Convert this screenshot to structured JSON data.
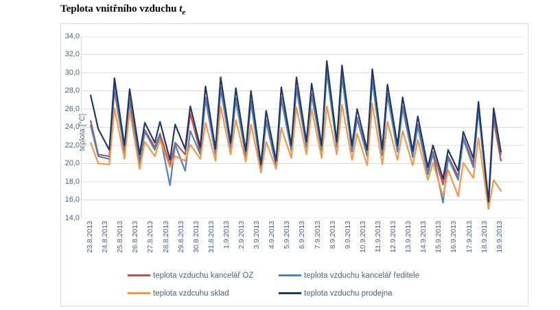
{
  "title": {
    "prefix": "Teplota vnitřního vzduchu ",
    "var": "t",
    "sub": "e"
  },
  "colors": {
    "background": "#ffffff",
    "frame_border": "#d9d9d9",
    "gridline": "#d9d9d9",
    "axis_text": "#4a6285",
    "series_red": "#c0504d",
    "series_blue": "#4f81bd",
    "series_orange": "#f79646",
    "series_navy": "#1f3864"
  },
  "chart_data": {
    "type": "line",
    "title": "Teplota vnitřního vzduchu te",
    "xlabel": "",
    "ylabel": "teplota [°C]",
    "ylim": [
      14,
      34
    ],
    "ytick_step": 2,
    "ytick_labels": [
      "34,0",
      "32,0",
      "30,0",
      "28,0",
      "26,0",
      "24,0",
      "22,0",
      "20,0",
      "18,0",
      "16,0",
      "14,0"
    ],
    "grid": true,
    "legend_position": "bottom",
    "x_dates": [
      "23.8.2013",
      "24.8.2013",
      "25.8.2013",
      "26.8.2013",
      "27.8.2013",
      "28.8.2013",
      "29.8.2013",
      "30.8.2013",
      "31.8.2013",
      "1.9.2013",
      "2.9.2013",
      "3.9.2013",
      "4.9.2013",
      "5.9.2013",
      "6.9.2013",
      "7.9.2013",
      "8.9.2013",
      "9.9.2013",
      "10.9.2013",
      "11.9.2013",
      "12.9.2013",
      "13.9.2013",
      "14.9.2013",
      "15.9.2013",
      "16.9.2013",
      "17.9.2013",
      "18.9.2013",
      "19.9.2013"
    ],
    "sampling_note": "hodnoty odečtené z grafu: denní minimum a maximum teploty [°C] pro každý den",
    "series": [
      {
        "name": "teplota vzduchu kancelář OZ",
        "color": "#c0504d",
        "start": 24.7,
        "end": 20.3,
        "daily_min": [
          21.0,
          20.8,
          21.4,
          20.3,
          21.8,
          19.8,
          21.0,
          21.2,
          21.2,
          21.9,
          21.0,
          19.5,
          19.9,
          21.6,
          22.0,
          21.6,
          22.0,
          21.5,
          21.0,
          21.1,
          21.5,
          20.9,
          19.0,
          17.7,
          18.6,
          20.0,
          15.5,
          20.1
        ],
        "daily_max": [
          24.7,
          28.0,
          27.2,
          23.7,
          23.3,
          22.3,
          25.5,
          27.3,
          28.4,
          27.2,
          26.9,
          24.8,
          27.3,
          28.4,
          27.7,
          30.2,
          29.7,
          25.1,
          29.3,
          27.7,
          26.3,
          24.3,
          21.3,
          20.8,
          22.9,
          26.0,
          24.8,
          20.5
        ]
      },
      {
        "name": "teplota vzduchu kancelář ředitele",
        "color": "#4f81bd",
        "start": 24.2,
        "end": 21.0,
        "daily_min": [
          20.8,
          20.5,
          21.1,
          20.0,
          21.5,
          17.6,
          19.2,
          21.0,
          21.0,
          21.7,
          20.8,
          19.3,
          19.7,
          21.4,
          21.8,
          21.4,
          21.8,
          21.3,
          20.8,
          20.9,
          21.3,
          20.7,
          18.8,
          15.7,
          18.2,
          19.6,
          15.2,
          20.8
        ],
        "daily_max": [
          24.2,
          28.6,
          26.8,
          23.5,
          23.1,
          22.1,
          23.6,
          27.1,
          28.2,
          27.0,
          26.7,
          24.6,
          27.1,
          28.2,
          27.5,
          30.0,
          29.5,
          24.9,
          29.1,
          27.5,
          26.1,
          24.1,
          21.1,
          20.6,
          22.7,
          25.8,
          25.6,
          21.2
        ]
      },
      {
        "name": "teplota vzdcuhu sklad",
        "color": "#f79646",
        "start": 22.3,
        "end": 17.0,
        "daily_min": [
          20.0,
          19.9,
          20.5,
          19.4,
          20.8,
          19.6,
          20.3,
          20.5,
          20.3,
          21.0,
          20.2,
          19.0,
          19.4,
          20.6,
          21.0,
          20.6,
          21.0,
          20.4,
          19.8,
          19.9,
          20.4,
          19.8,
          18.2,
          16.4,
          16.4,
          18.4,
          15.0,
          16.8
        ],
        "daily_max": [
          22.3,
          26.1,
          25.8,
          22.4,
          22.6,
          20.8,
          22.1,
          24.5,
          26.3,
          24.8,
          24.3,
          22.4,
          23.9,
          26.2,
          26.0,
          26.3,
          26.5,
          23.3,
          26.6,
          24.6,
          23.6,
          22.6,
          20.1,
          19.3,
          20.1,
          22.8,
          18.2,
          17.6
        ]
      },
      {
        "name": "teplota vzduchu prodejna",
        "color": "#1f3864",
        "start": 27.5,
        "end": 21.3,
        "daily_min": [
          23.8,
          21.5,
          22.0,
          21.0,
          22.3,
          20.4,
          21.6,
          21.8,
          21.6,
          22.3,
          21.4,
          19.9,
          20.3,
          22.0,
          22.4,
          22.0,
          22.4,
          22.0,
          21.5,
          21.6,
          22.0,
          21.4,
          19.6,
          18.3,
          19.2,
          20.6,
          15.8,
          21.3
        ],
        "daily_max": [
          27.5,
          29.4,
          28.2,
          24.5,
          24.6,
          24.3,
          26.3,
          28.5,
          29.5,
          28.3,
          28.0,
          25.8,
          28.4,
          29.5,
          28.8,
          31.3,
          30.8,
          26.0,
          30.4,
          28.7,
          27.3,
          25.2,
          22.0,
          21.5,
          23.5,
          26.8,
          26.1,
          21.5
        ]
      }
    ]
  }
}
